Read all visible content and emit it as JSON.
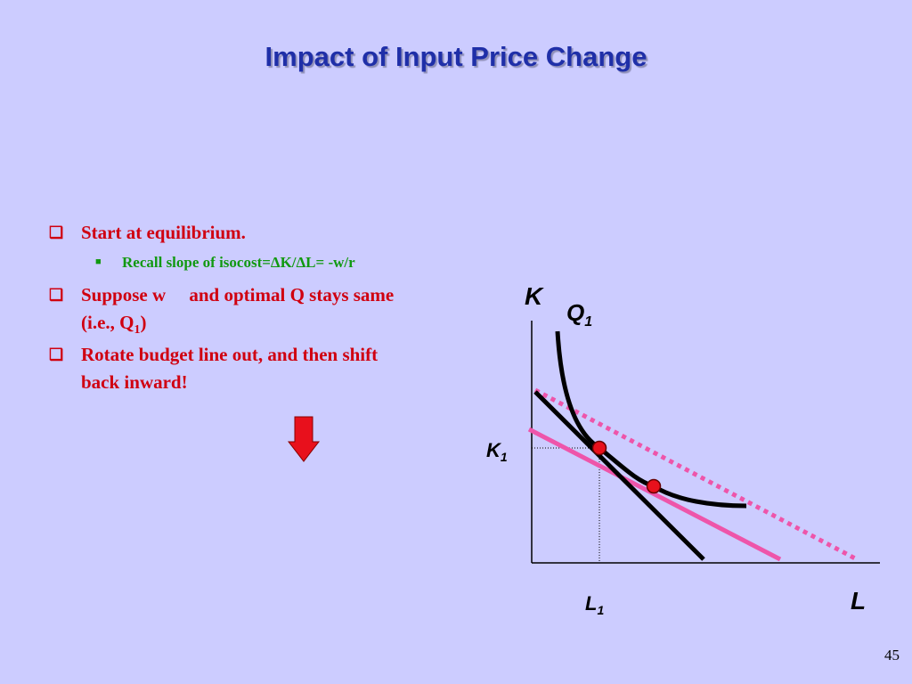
{
  "title": "Impact of Input Price Change",
  "bullets": [
    {
      "text": "Start at equilibrium."
    },
    {
      "text": "Recall slope of isocost=ΔK/ΔL= -w/r"
    },
    {
      "text": "Suppose w     and optimal Q stays same (i.e., Q",
      "sub": "1",
      "after": ")"
    },
    {
      "text": "Rotate budget line out, and then shift back inward!"
    }
  ],
  "diagram": {
    "y_axis": "K",
    "x_axis": "L",
    "curve": {
      "text": "Q",
      "sub": "1"
    },
    "k_mark": {
      "text": "K",
      "sub": "1"
    },
    "l_mark": {
      "text": "L",
      "sub": "1"
    }
  },
  "page_number": "45"
}
